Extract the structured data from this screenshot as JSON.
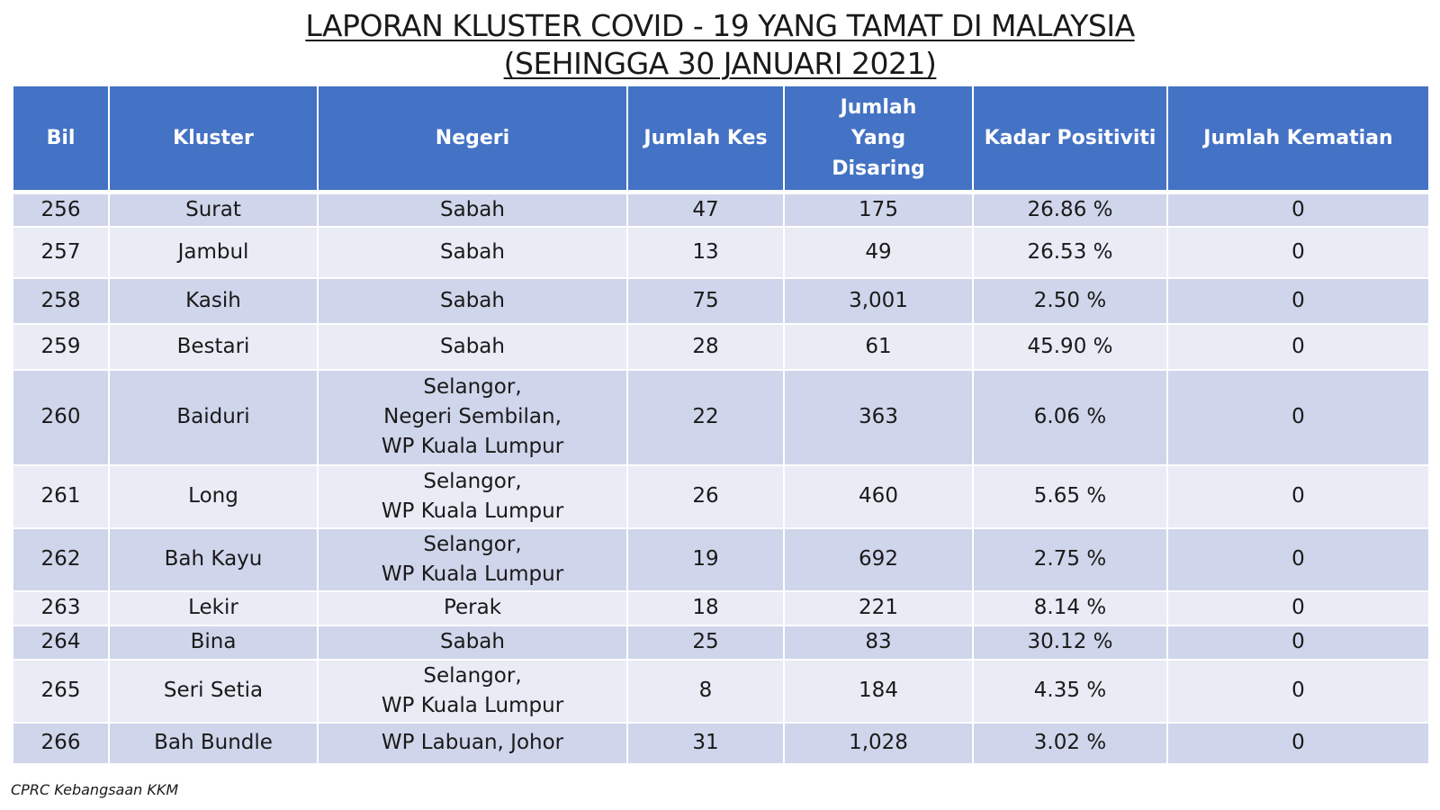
{
  "title": {
    "line1": "LAPORAN KLUSTER COVID - 19 YANG TAMAT DI MALAYSIA",
    "line2": "(SEHINGGA 30 JANUARI 2021)"
  },
  "table": {
    "headers": [
      "Bil",
      "Kluster",
      "Negeri",
      "Jumlah Kes",
      "Jumlah Yang Disaring",
      "Kadar Positiviti",
      "Jumlah Kematian"
    ],
    "rows": [
      {
        "bil": "256",
        "kluster": "Surat",
        "negeri": [
          "Sabah"
        ],
        "kes": "47",
        "disaring": "175",
        "positiviti": "26.86 %",
        "kematian": "0"
      },
      {
        "bil": "257",
        "kluster": "Jambul",
        "negeri": [
          "Sabah"
        ],
        "kes": "13",
        "disaring": "49",
        "positiviti": "26.53 %",
        "kematian": "0"
      },
      {
        "bil": "258",
        "kluster": "Kasih",
        "negeri": [
          "Sabah"
        ],
        "kes": "75",
        "disaring": "3,001",
        "positiviti": "2.50 %",
        "kematian": "0"
      },
      {
        "bil": "259",
        "kluster": "Bestari",
        "negeri": [
          "Sabah"
        ],
        "kes": "28",
        "disaring": "61",
        "positiviti": "45.90 %",
        "kematian": "0"
      },
      {
        "bil": "260",
        "kluster": "Baiduri",
        "negeri": [
          "Selangor,",
          "Negeri Sembilan,",
          "WP Kuala Lumpur"
        ],
        "kes": "22",
        "disaring": "363",
        "positiviti": "6.06 %",
        "kematian": "0"
      },
      {
        "bil": "261",
        "kluster": "Long",
        "negeri": [
          "Selangor,",
          "WP Kuala Lumpur"
        ],
        "kes": "26",
        "disaring": "460",
        "positiviti": "5.65 %",
        "kematian": "0"
      },
      {
        "bil": "262",
        "kluster": "Bah Kayu",
        "negeri": [
          "Selangor,",
          "WP Kuala Lumpur"
        ],
        "kes": "19",
        "disaring": "692",
        "positiviti": "2.75 %",
        "kematian": "0"
      },
      {
        "bil": "263",
        "kluster": "Lekir",
        "negeri": [
          "Perak"
        ],
        "kes": "18",
        "disaring": "221",
        "positiviti": "8.14 %",
        "kematian": "0"
      },
      {
        "bil": "264",
        "kluster": "Bina",
        "negeri": [
          "Sabah"
        ],
        "kes": "25",
        "disaring": "83",
        "positiviti": "30.12 %",
        "kematian": "0"
      },
      {
        "bil": "265",
        "kluster": "Seri Setia",
        "negeri": [
          "Selangor,",
          "WP Kuala Lumpur"
        ],
        "kes": "8",
        "disaring": "184",
        "positiviti": "4.35 %",
        "kematian": "0"
      },
      {
        "bil": "266",
        "kluster": "Bah Bundle",
        "negeri": [
          "WP Labuan, Johor"
        ],
        "kes": "31",
        "disaring": "1,028",
        "positiviti": "3.02 %",
        "kematian": "0"
      }
    ]
  },
  "footer": "CPRC Kebangsaan KKM",
  "colors": {
    "header_bg": "#4472c4",
    "row_band_dark": "#cfd5ea",
    "row_band_light": "#e9ebf5"
  }
}
